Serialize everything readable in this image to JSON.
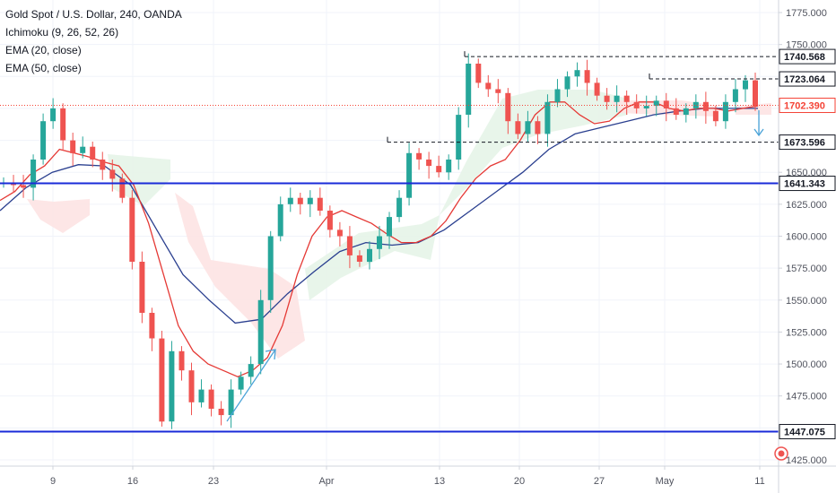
{
  "header": {
    "title": "Gold Spot / U.S. Dollar, 240, OANDA",
    "indicators": [
      "Ichimoku (9, 26, 52, 26)",
      "EMA (20, close)",
      "EMA (50, close)"
    ]
  },
  "colors": {
    "up": "#26a69a",
    "down": "#ef5350",
    "ema20": "#e53935",
    "ema50": "#2a3f8f",
    "level_line": "#1a2bd8",
    "current_price": "#f44336",
    "cloud_bull": "#e6f4e8",
    "cloud_bear": "#fde3e3",
    "arrow": "#4aa3d8"
  },
  "chart_data": {
    "type": "line",
    "description": "Gold spot 4h candlestick chart (approximated close path)",
    "x_labels": [
      "9",
      "16",
      "23",
      "Apr",
      "13",
      "20",
      "27",
      "May",
      "11"
    ],
    "y_ticks": [
      "1775.000",
      "1750.000",
      "1725.000",
      "1700.000",
      "1675.000",
      "1650.000",
      "1625.000",
      "1600.000",
      "1575.000",
      "1550.000",
      "1525.000",
      "1500.000",
      "1475.000",
      "1450.000",
      "1425.000"
    ],
    "ylim": [
      1425,
      1780
    ],
    "price_levels": [
      {
        "label": "1740.568",
        "value": 1740.568,
        "style": "dashed",
        "color": "#131722"
      },
      {
        "label": "1723.064",
        "value": 1723.064,
        "style": "dashed",
        "color": "#131722"
      },
      {
        "label": "1702.390",
        "value": 1702.39,
        "style": "dotted",
        "color": "#f44336"
      },
      {
        "label": "1673.596",
        "value": 1673.596,
        "style": "dashed",
        "color": "#131722"
      },
      {
        "label": "1641.343",
        "value": 1641.343,
        "style": "solid",
        "color": "#1a2bd8"
      },
      {
        "label": "1447.075",
        "value": 1447.075,
        "style": "solid",
        "color": "#1a2bd8"
      }
    ],
    "series": [
      {
        "name": "Price",
        "values": [
          1642,
          1640,
          1638,
          1660,
          1690,
          1700,
          1675,
          1665,
          1670,
          1660,
          1652,
          1645,
          1630,
          1580,
          1540,
          1520,
          1455,
          1510,
          1495,
          1470,
          1480,
          1465,
          1460,
          1480,
          1490,
          1500,
          1550,
          1600,
          1625,
          1630,
          1625,
          1630,
          1620,
          1605,
          1600,
          1585,
          1580,
          1590,
          1600,
          1615,
          1630,
          1665,
          1660,
          1655,
          1650,
          1660,
          1695,
          1735,
          1720,
          1715,
          1712,
          1690,
          1680,
          1690,
          1680,
          1705,
          1715,
          1725,
          1730,
          1720,
          1710,
          1705,
          1710,
          1705,
          1700,
          1702,
          1706,
          1700,
          1695,
          1700,
          1705,
          1698,
          1690,
          1705,
          1715,
          1722,
          1702
        ]
      },
      {
        "name": "EMA (20, close)",
        "values": [
          1628,
          1635,
          1648,
          1655,
          1668,
          1665,
          1662,
          1658,
          1655,
          1640,
          1610,
          1570,
          1530,
          1510,
          1500,
          1495,
          1490,
          1495,
          1505,
          1530,
          1570,
          1600,
          1615,
          1620,
          1615,
          1610,
          1602,
          1595,
          1595,
          1600,
          1612,
          1630,
          1645,
          1655,
          1660,
          1675,
          1695,
          1705,
          1705,
          1695,
          1688,
          1690,
          1700,
          1705,
          1705,
          1700,
          1698,
          1700,
          1700,
          1698,
          1700,
          1702
        ]
      },
      {
        "name": "EMA (50, close)",
        "values": [
          1620,
          1638,
          1650,
          1656,
          1655,
          1640,
          1605,
          1570,
          1550,
          1532,
          1535,
          1555,
          1572,
          1588,
          1595,
          1593,
          1595,
          1605,
          1620,
          1635,
          1650,
          1668,
          1680,
          1685,
          1690,
          1695,
          1698,
          1700,
          1700,
          1700
        ]
      }
    ]
  },
  "axis_right": {
    "tick_labels": [
      "1775.000",
      "1750.000",
      "1725.000",
      "1700.000",
      "1675.000",
      "1650.000",
      "1625.000",
      "1600.000",
      "1575.000",
      "1550.000",
      "1525.000",
      "1500.000",
      "1475.000",
      "1450.000",
      "1425.000"
    ]
  }
}
